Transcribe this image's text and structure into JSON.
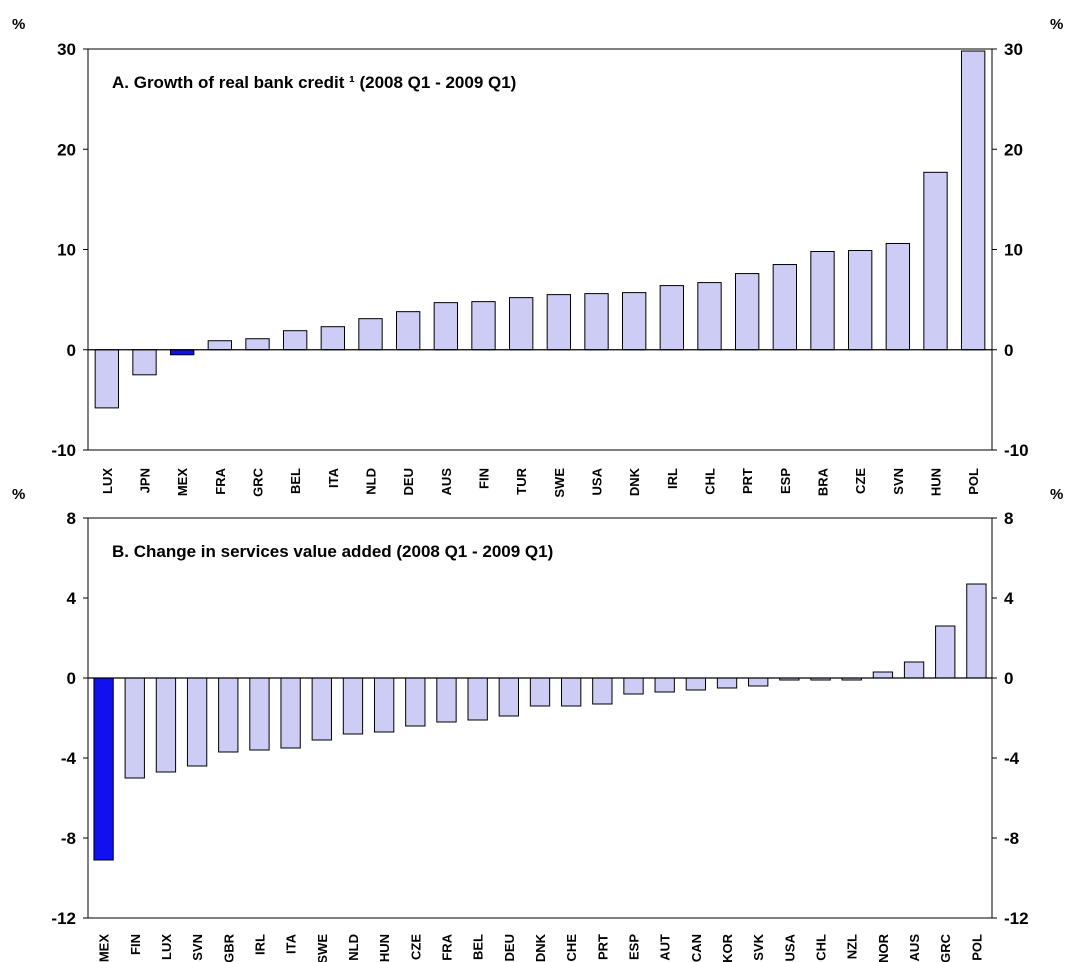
{
  "chart_data": [
    {
      "type": "bar",
      "title": "A. Growth of real bank credit ¹ (2008 Q1 - 2009 Q1)",
      "unit_left": "%",
      "unit_right": "%",
      "ylim": [
        -10,
        30
      ],
      "yticks": [
        -10,
        0,
        10,
        20,
        30
      ],
      "categories": [
        "LUX",
        "JPN",
        "MEX",
        "FRA",
        "GRC",
        "BEL",
        "ITA",
        "NLD",
        "DEU",
        "AUS",
        "FIN",
        "TUR",
        "SWE",
        "USA",
        "DNK",
        "IRL",
        "CHL",
        "PRT",
        "ESP",
        "BRA",
        "CZE",
        "SVN",
        "HUN",
        "POL"
      ],
      "values": [
        -5.8,
        -2.5,
        -0.5,
        0.9,
        1.1,
        1.9,
        2.3,
        3.1,
        3.8,
        4.7,
        4.8,
        5.2,
        5.5,
        5.6,
        5.7,
        6.4,
        6.7,
        7.6,
        8.5,
        9.8,
        9.9,
        10.6,
        17.7,
        29.8
      ],
      "highlight": [
        "MEX"
      ],
      "colors": {
        "bar": "#ccccf5",
        "highlight": "#1010f0",
        "stroke": "#000000"
      }
    },
    {
      "type": "bar",
      "title": "B. Change in services value added (2008 Q1 - 2009 Q1)",
      "unit_left": "%",
      "unit_right": "%",
      "ylim": [
        -12,
        8
      ],
      "yticks": [
        -12,
        -8,
        -4,
        0,
        4,
        8
      ],
      "categories": [
        "MEX",
        "FIN",
        "LUX",
        "SVN",
        "GBR",
        "IRL",
        "ITA",
        "SWE",
        "NLD",
        "HUN",
        "CZE",
        "FRA",
        "BEL",
        "DEU",
        "DNK",
        "CHE",
        "PRT",
        "ESP",
        "AUT",
        "CAN",
        "KOR",
        "SVK",
        "USA",
        "CHL",
        "NZL",
        "NOR",
        "AUS",
        "GRC",
        "POL"
      ],
      "values": [
        -9.1,
        -5.0,
        -4.7,
        -4.4,
        -3.7,
        -3.6,
        -3.5,
        -3.1,
        -2.8,
        -2.7,
        -2.4,
        -2.2,
        -2.1,
        -1.9,
        -1.4,
        -1.4,
        -1.3,
        -0.8,
        -0.7,
        -0.6,
        -0.5,
        -0.4,
        -0.1,
        -0.1,
        -0.1,
        0.3,
        0.8,
        2.6,
        4.7
      ],
      "highlight": [
        "MEX"
      ],
      "colors": {
        "bar": "#ccccf5",
        "highlight": "#1010f0",
        "stroke": "#000000"
      }
    }
  ]
}
